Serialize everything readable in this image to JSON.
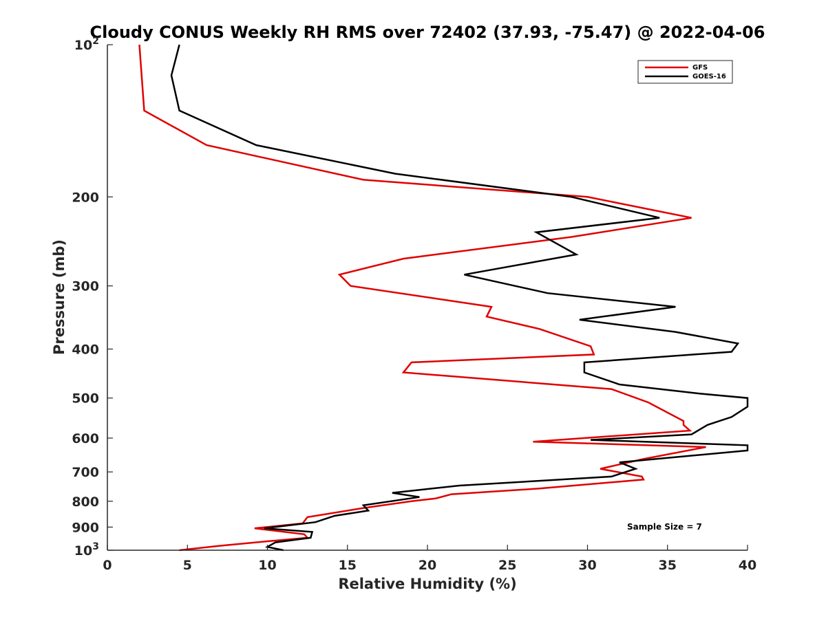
{
  "chart_data": {
    "type": "line",
    "title": "Cloudy CONUS Weekly RH RMS over 72402 (37.93, -75.47) @ 2022-04-06",
    "xlabel": "Relative Humidity (%)",
    "ylabel": "Pressure (mb)",
    "xlim": [
      0,
      40
    ],
    "ylim": [
      100,
      1000
    ],
    "yscale": "log",
    "y_reversed": true,
    "xticks": [
      0,
      5,
      10,
      15,
      20,
      25,
      30,
      35,
      40
    ],
    "yticks": [
      {
        "value": 100,
        "label": "10",
        "sup": "2"
      },
      {
        "value": 200,
        "label": "200",
        "sup": ""
      },
      {
        "value": 300,
        "label": "300",
        "sup": ""
      },
      {
        "value": 400,
        "label": "400",
        "sup": ""
      },
      {
        "value": 500,
        "label": "500",
        "sup": ""
      },
      {
        "value": 600,
        "label": "600",
        "sup": ""
      },
      {
        "value": 700,
        "label": "700",
        "sup": ""
      },
      {
        "value": 800,
        "label": "800",
        "sup": ""
      },
      {
        "value": 900,
        "label": "900",
        "sup": ""
      },
      {
        "value": 1000,
        "label": "10",
        "sup": "3"
      }
    ],
    "grid": false,
    "legend_position": "top-right",
    "annotation": "Sample Size = 7",
    "series": [
      {
        "name": "GFS",
        "color": "#e00000",
        "points": [
          [
            2.0,
            100
          ],
          [
            2.3,
            135
          ],
          [
            6.2,
            158
          ],
          [
            16.0,
            185
          ],
          [
            30.0,
            200
          ],
          [
            36.5,
            220
          ],
          [
            29.0,
            240
          ],
          [
            18.5,
            265
          ],
          [
            14.5,
            285
          ],
          [
            15.2,
            300
          ],
          [
            24.0,
            330
          ],
          [
            23.7,
            345
          ],
          [
            27.0,
            365
          ],
          [
            30.2,
            395
          ],
          [
            30.4,
            410
          ],
          [
            19.0,
            425
          ],
          [
            18.5,
            445
          ],
          [
            31.5,
            480
          ],
          [
            33.8,
            510
          ],
          [
            36.0,
            555
          ],
          [
            36.0,
            565
          ],
          [
            36.4,
            580
          ],
          [
            26.6,
            610
          ],
          [
            37.4,
            625
          ],
          [
            33.5,
            660
          ],
          [
            30.8,
            690
          ],
          [
            33.4,
            715
          ],
          [
            33.5,
            725
          ],
          [
            27.0,
            755
          ],
          [
            21.5,
            775
          ],
          [
            20.5,
            790
          ],
          [
            19.0,
            800
          ],
          [
            16.0,
            825
          ],
          [
            12.5,
            860
          ],
          [
            12.2,
            885
          ],
          [
            9.2,
            905
          ],
          [
            12.3,
            930
          ],
          [
            12.5,
            945
          ],
          [
            10.0,
            960
          ],
          [
            7.0,
            980
          ],
          [
            4.5,
            1000
          ]
        ]
      },
      {
        "name": "GOES-16",
        "color": "#000000",
        "points": [
          [
            4.5,
            100
          ],
          [
            4.0,
            115
          ],
          [
            4.5,
            135
          ],
          [
            9.3,
            158
          ],
          [
            18.0,
            180
          ],
          [
            29.0,
            200
          ],
          [
            34.5,
            220
          ],
          [
            26.8,
            235
          ],
          [
            29.3,
            260
          ],
          [
            22.3,
            285
          ],
          [
            27.5,
            310
          ],
          [
            35.5,
            330
          ],
          [
            29.5,
            350
          ],
          [
            35.5,
            370
          ],
          [
            39.4,
            390
          ],
          [
            39.0,
            405
          ],
          [
            29.8,
            425
          ],
          [
            29.8,
            445
          ],
          [
            32.0,
            470
          ],
          [
            37.0,
            490
          ],
          [
            40.0,
            500
          ],
          [
            40.0,
            520
          ],
          [
            39.0,
            545
          ],
          [
            37.5,
            565
          ],
          [
            36.5,
            590
          ],
          [
            30.2,
            605
          ],
          [
            40.0,
            620
          ],
          [
            40.0,
            635
          ],
          [
            36.5,
            650
          ],
          [
            32.0,
            670
          ],
          [
            33.0,
            690
          ],
          [
            31.5,
            715
          ],
          [
            22.0,
            745
          ],
          [
            17.8,
            770
          ],
          [
            19.5,
            785
          ],
          [
            16.0,
            815
          ],
          [
            16.3,
            835
          ],
          [
            14.2,
            855
          ],
          [
            13.0,
            880
          ],
          [
            9.8,
            905
          ],
          [
            12.8,
            920
          ],
          [
            12.7,
            945
          ],
          [
            10.5,
            965
          ],
          [
            10.0,
            985
          ],
          [
            11.0,
            1000
          ]
        ]
      }
    ]
  }
}
